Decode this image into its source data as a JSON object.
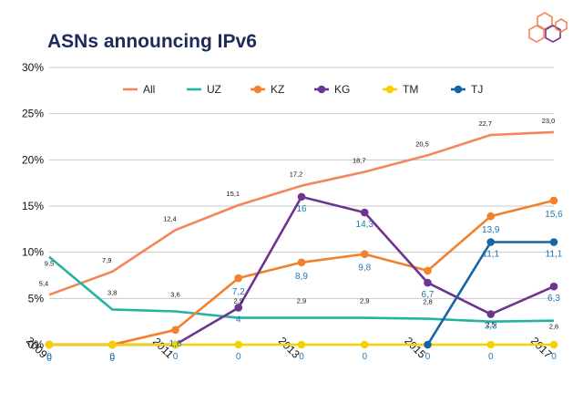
{
  "chart_data": {
    "type": "line",
    "title": "ASNs announcing IPv6",
    "x": [
      "2009",
      "2010",
      "2011",
      "2012",
      "2013",
      "2014",
      "2015",
      "2016",
      "2017"
    ],
    "x_tick_labels": [
      "2009",
      "2011",
      "2013",
      "2015",
      "2017"
    ],
    "ylim": [
      0,
      30
    ],
    "y_ticks": [
      0,
      5,
      10,
      15,
      20,
      25,
      30
    ],
    "y_tick_labels": [
      "0%",
      "5%",
      "10%",
      "15%",
      "20%",
      "25%",
      "30%"
    ],
    "grid": true,
    "legend_position": "top",
    "series": [
      {
        "name": "All",
        "color": "#f4865c",
        "marker": false,
        "values": [
          5.4,
          7.9,
          12.4,
          15.1,
          17.2,
          18.7,
          20.5,
          22.7,
          23.0
        ],
        "labels": [
          "5,4",
          "7,9",
          "12,4",
          "15,1",
          "17,2",
          "18,7",
          "20,5",
          "22,7",
          "23,0"
        ]
      },
      {
        "name": "UZ",
        "color": "#22b3a3",
        "marker": false,
        "values": [
          9.5,
          3.8,
          3.6,
          2.9,
          2.9,
          2.9,
          2.8,
          2.5,
          2.6
        ],
        "labels": [
          "9,5",
          "3,8",
          "3,6",
          "2,9",
          "2,9",
          "2,9",
          "2,8",
          "2,5",
          "2,6"
        ]
      },
      {
        "name": "KZ",
        "color": "#f3802a",
        "marker": true,
        "values": [
          0,
          0,
          1.6,
          7.2,
          8.9,
          9.8,
          8.0,
          13.9,
          15.6
        ],
        "labels": [
          "0",
          "0",
          "1,6",
          "7,2",
          "8,9",
          "9,8",
          "",
          "13,9",
          "15,6"
        ]
      },
      {
        "name": "KG",
        "color": "#6d3590",
        "marker": true,
        "values": [
          0,
          0,
          0,
          4,
          16,
          14.3,
          6.7,
          3.3,
          6.3
        ],
        "labels": [
          "",
          "",
          "",
          "4",
          "16",
          "14,3",
          "6,7",
          "3,3",
          "6,3"
        ]
      },
      {
        "name": "TM",
        "color": "#f7d000",
        "marker": true,
        "values": [
          0,
          0,
          0,
          0,
          0,
          0,
          0,
          0,
          0
        ],
        "labels": [
          "0",
          "0",
          "0",
          "0",
          "0",
          "0",
          "0",
          "0",
          "0"
        ]
      },
      {
        "name": "TJ",
        "color": "#1565a6",
        "marker": true,
        "values": [
          null,
          null,
          null,
          null,
          null,
          null,
          0,
          11.1,
          11.1
        ],
        "labels": [
          "",
          "",
          "",
          "",
          "",
          "",
          "",
          "11,1",
          "11,1"
        ]
      }
    ]
  },
  "logo": {
    "name": "hexagon-logo",
    "colors": [
      "#f4865c",
      "#6d3590"
    ]
  }
}
